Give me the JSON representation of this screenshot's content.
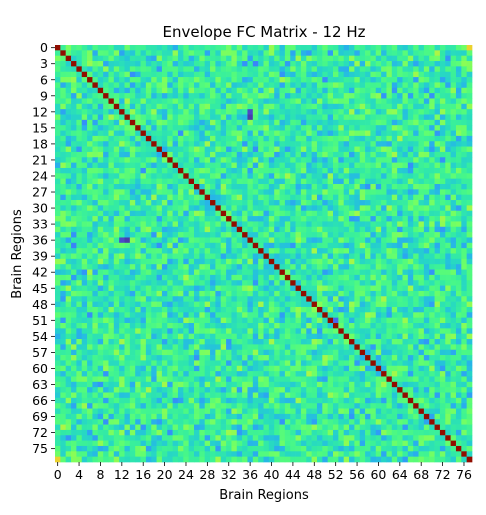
{
  "chart_data": {
    "type": "heatmap",
    "title": "Envelope FC Matrix - 12 Hz",
    "xlabel": "Brain Regions",
    "ylabel": "Brain Regions",
    "n_regions": 78,
    "x_tick_step": 4,
    "y_tick_step": 3,
    "diagonal_value": 1.0,
    "off_diagonal_range": [
      0.15,
      0.55
    ],
    "value_range": [
      0.0,
      1.0
    ],
    "colorbar": false,
    "colormap": "turbo",
    "notable_cells": [
      {
        "row": 13,
        "col": 36,
        "value": 0.06
      },
      {
        "row": 36,
        "col": 13,
        "value": 0.06
      },
      {
        "row": 36,
        "col": 12,
        "value": 0.08
      },
      {
        "row": 12,
        "col": 36,
        "value": 0.08
      },
      {
        "row": 51,
        "col": 52,
        "value": 0.12
      },
      {
        "row": 0,
        "col": 77,
        "value": 0.62
      },
      {
        "row": 77,
        "col": 0,
        "value": 0.62
      }
    ]
  }
}
